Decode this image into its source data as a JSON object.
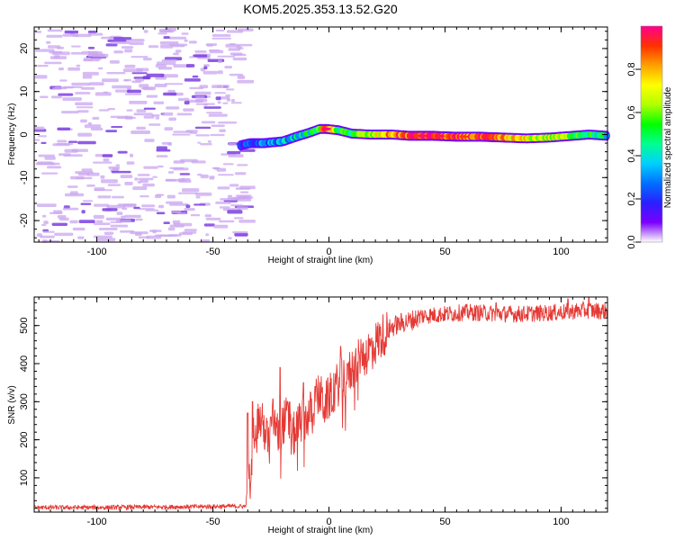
{
  "title": "KOM5.2025.353.13.52.G20",
  "colors": {
    "snr_line": "#e53935",
    "noise_speckle": "#c9a6f0",
    "noise_speckle_dark": "#7b3fe0",
    "background": "#ffffff",
    "axis": "#000000"
  },
  "chart_data": [
    {
      "id": "spectrogram",
      "type": "heatmap",
      "xlabel": "Height of straight line (km)",
      "ylabel": "Frequency (Hz)",
      "xlim": [
        -127,
        120
      ],
      "ylim": [
        -25,
        25
      ],
      "xticks": [
        -100,
        -50,
        0,
        50,
        100
      ],
      "xtick_labels": [
        "-100",
        "-50",
        "0",
        "50",
        "100"
      ],
      "yticks": [
        -20,
        -10,
        0,
        10,
        20
      ],
      "ytick_labels": [
        "-20",
        "-10",
        "0",
        "10",
        "20"
      ],
      "noise_region_x": [
        -127,
        -38
      ],
      "trace_knots": [
        {
          "x": -38,
          "f": -2.5,
          "a": 0.12
        },
        {
          "x": -34,
          "f": -2.0,
          "a": 0.2
        },
        {
          "x": -28,
          "f": -2.0,
          "a": 0.28
        },
        {
          "x": -20,
          "f": -1.6,
          "a": 0.32
        },
        {
          "x": -14,
          "f": -0.5,
          "a": 0.38
        },
        {
          "x": -8,
          "f": 0.5,
          "a": 0.45
        },
        {
          "x": -4,
          "f": 1.3,
          "a": 0.55
        },
        {
          "x": -1,
          "f": 1.3,
          "a": 1.0
        },
        {
          "x": 4,
          "f": 1.0,
          "a": 0.45
        },
        {
          "x": 10,
          "f": 0.2,
          "a": 0.55
        },
        {
          "x": 18,
          "f": 0.0,
          "a": 0.6
        },
        {
          "x": 27,
          "f": 0.0,
          "a": 0.82
        },
        {
          "x": 35,
          "f": -0.3,
          "a": 0.9
        },
        {
          "x": 45,
          "f": -0.3,
          "a": 0.95
        },
        {
          "x": 55,
          "f": -0.5,
          "a": 0.85
        },
        {
          "x": 65,
          "f": -0.5,
          "a": 0.88
        },
        {
          "x": 75,
          "f": -0.7,
          "a": 0.8
        },
        {
          "x": 85,
          "f": -0.9,
          "a": 0.7
        },
        {
          "x": 95,
          "f": -0.7,
          "a": 0.65
        },
        {
          "x": 105,
          "f": -0.3,
          "a": 0.6
        },
        {
          "x": 112,
          "f": 0.0,
          "a": 0.5
        },
        {
          "x": 120,
          "f": -0.3,
          "a": 0.4
        }
      ]
    },
    {
      "id": "colorbar",
      "type": "colorbar",
      "label": "Normalized spectral amplitude",
      "range": [
        0,
        1
      ],
      "ticks": [
        0.0,
        0.2,
        0.4,
        0.6,
        0.8
      ],
      "tick_labels": [
        "0.0",
        "0.2",
        "0.4",
        "0.6",
        "0.8"
      ],
      "colorscale": [
        "#ffffff",
        "#7a00ff",
        "#2a20ff",
        "#0070ff",
        "#00d0ff",
        "#00ff90",
        "#00ff00",
        "#b0ff00",
        "#ffff00",
        "#ffa000",
        "#ff3000",
        "#ff0090"
      ]
    },
    {
      "id": "snr",
      "type": "line",
      "xlabel": "Height of straight line (km)",
      "ylabel": "SNR (v/v)",
      "xlim": [
        -127,
        120
      ],
      "ylim": [
        10,
        575
      ],
      "xticks": [
        -100,
        -50,
        0,
        50,
        100
      ],
      "xtick_labels": [
        "-100",
        "-50",
        "0",
        "50",
        "100"
      ],
      "yticks": [
        100,
        200,
        300,
        400,
        500
      ],
      "ytick_labels": [
        "100",
        "200",
        "300",
        "400",
        "500"
      ],
      "series": [
        {
          "name": "SNR",
          "x": [
            -127,
            -100,
            -80,
            -60,
            -45,
            -36,
            -34,
            -32,
            -30,
            -28,
            -26,
            -24,
            -22,
            -20,
            -18,
            -16,
            -14,
            -12,
            -10,
            -8,
            -6,
            -4,
            -2,
            0,
            3,
            6,
            9,
            12,
            15,
            18,
            21,
            24,
            27,
            30,
            35,
            40,
            50,
            60,
            70,
            80,
            90,
            100,
            110,
            120
          ],
          "y": [
            22,
            22,
            23,
            24,
            25,
            25,
            120,
            240,
            255,
            230,
            190,
            260,
            210,
            240,
            260,
            200,
            230,
            250,
            255,
            270,
            300,
            320,
            290,
            310,
            340,
            360,
            380,
            400,
            420,
            440,
            460,
            480,
            495,
            505,
            512,
            525,
            530,
            535,
            532,
            530,
            532,
            535,
            540,
            538
          ]
        }
      ],
      "spikes": [
        {
          "x": -35,
          "y": 270
        },
        {
          "x": -33,
          "y": 300
        },
        {
          "x": -25,
          "y": 260
        },
        {
          "x": -21,
          "y": 390
        },
        {
          "x": -17,
          "y": 300
        },
        {
          "x": -11,
          "y": 350
        },
        {
          "x": -6,
          "y": 340
        },
        {
          "x": 5,
          "y": 445
        },
        {
          "x": 8,
          "y": 400
        },
        {
          "x": 14,
          "y": 430
        },
        {
          "x": 30,
          "y": 520
        },
        {
          "x": 72,
          "y": 560
        },
        {
          "x": 103,
          "y": 570
        },
        {
          "x": 112,
          "y": 575
        }
      ]
    }
  ]
}
